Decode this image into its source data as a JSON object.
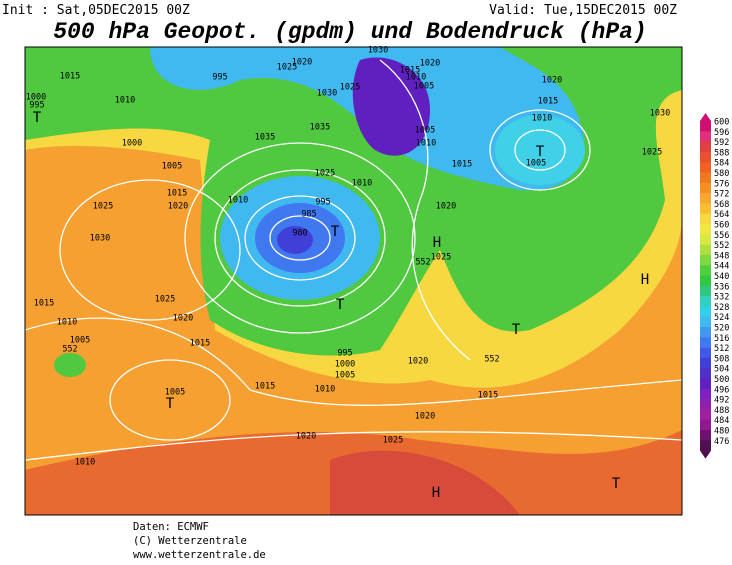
{
  "header": {
    "init": "Init : Sat,05DEC2015 00Z",
    "valid": "Valid: Tue,15DEC2015 00Z",
    "title": "500 hPa Geopot. (gpdm) und Bodendruck (hPa)"
  },
  "colorbar": {
    "labels": [
      600,
      596,
      592,
      588,
      584,
      580,
      576,
      572,
      568,
      564,
      560,
      556,
      552,
      548,
      544,
      540,
      536,
      532,
      528,
      524,
      520,
      516,
      512,
      508,
      504,
      500,
      496,
      492,
      488,
      484,
      480,
      476
    ],
    "colors": [
      "#d01070",
      "#e0307a",
      "#e04040",
      "#e85030",
      "#f06020",
      "#f07820",
      "#f59020",
      "#f8a830",
      "#f8c030",
      "#f8d840",
      "#f0e840",
      "#d8e840",
      "#b0e040",
      "#80d840",
      "#50d040",
      "#30c840",
      "#30c880",
      "#30d0c0",
      "#30d0e8",
      "#40b8f0",
      "#4098f0",
      "#4078f0",
      "#4058e8",
      "#4040d8",
      "#5030c8",
      "#6020c0",
      "#8020c0",
      "#9020b0",
      "#a020a0",
      "#901890",
      "#701070",
      "#501050"
    ]
  },
  "map": {
    "labels": [
      "1015",
      "1000",
      "995",
      "1010",
      "T",
      "1000",
      "1005",
      "1015",
      "1020",
      "1025",
      "1030",
      "1010",
      "995",
      "1020",
      "1025",
      "1030",
      "1025",
      "1035",
      "1035",
      "1025",
      "1010",
      "995",
      "985",
      "980",
      "T",
      "1015",
      "1025",
      "1010",
      "1020",
      "1005",
      "552",
      "1015",
      "T",
      "995",
      "1000",
      "1005",
      "1005",
      "T",
      "1015",
      "1010",
      "1020",
      "552",
      "1015",
      "1020",
      "1025",
      "1020",
      "1010",
      "H",
      "T",
      "H",
      "T",
      "H",
      "552",
      "1025",
      "1020",
      "1015",
      "1005",
      "1010",
      "1015",
      "1010",
      "1005",
      "1020",
      "1030",
      "1020",
      "1015",
      "1010",
      "T",
      "1005",
      "1030",
      "1025"
    ]
  },
  "footer": {
    "source": "Daten: ECMWF",
    "copyright": "(C) Wetterzentrale",
    "url": "www.wetterzentrale.de"
  }
}
